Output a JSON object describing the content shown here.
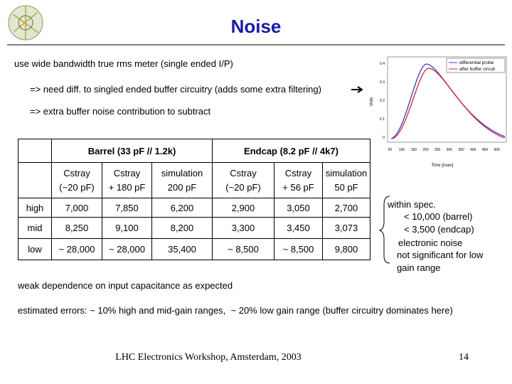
{
  "header": {
    "title": "Noise"
  },
  "bullets": [
    "use wide bandwidth true rms meter (single ended I/P)",
    "=> need diff. to singled ended buffer circuitry (adds some extra filtering)",
    "=> extra buffer noise contribution to subtract"
  ],
  "inset": {
    "legend": [
      "differential probe",
      "after buffer circuit"
    ],
    "y_label": "Volts",
    "x_label": "Time [nsec]",
    "yticks": [
      "0.4",
      "0.3",
      "0.2",
      "0.1",
      "0"
    ],
    "xticks": [
      "50",
      "100",
      "150",
      "200",
      "250",
      "300",
      "350",
      "400",
      "450",
      "500"
    ]
  },
  "table": {
    "groups": [
      "Barrel (33 pF // 1.2k)",
      "Endcap (8.2 pF // 4k7)"
    ],
    "columns": [
      [
        "Cstray",
        "(~20 pF)"
      ],
      [
        "Cstray",
        "+ 180 pF"
      ],
      [
        "simulation",
        "200 pF"
      ],
      [
        "Cstray",
        "(~20 pF)"
      ],
      [
        "Cstray",
        "+ 56 pF"
      ],
      [
        "simulation",
        "50 pF"
      ]
    ],
    "rows": [
      [
        "high",
        "7,000",
        "7,850",
        "6,200",
        "2,900",
        "3,050",
        "2,700"
      ],
      [
        "mid",
        "8,250",
        "9,100",
        "8,200",
        "3,300",
        "3,450",
        "3,073"
      ],
      [
        "low",
        "~ 28,000",
        "~ 28,000",
        "35,400",
        "~ 8,500",
        "~ 8,500",
        "9,800"
      ]
    ]
  },
  "spec_note": [
    "within spec.",
    "< 10,000 (barrel)",
    "< 3,500 (endcap)",
    "electronic noise",
    "not significant for low",
    "gain range"
  ],
  "notes": [
    "weak dependence on input capacitance as expected",
    "estimated errors: ~ 10% high and mid-gain ranges,  ~ 20% low gain range (buffer circuitry dominates here)"
  ],
  "footer": {
    "text": "LHC Electronics Workshop, Amsterdam, 2003",
    "page": "14"
  }
}
